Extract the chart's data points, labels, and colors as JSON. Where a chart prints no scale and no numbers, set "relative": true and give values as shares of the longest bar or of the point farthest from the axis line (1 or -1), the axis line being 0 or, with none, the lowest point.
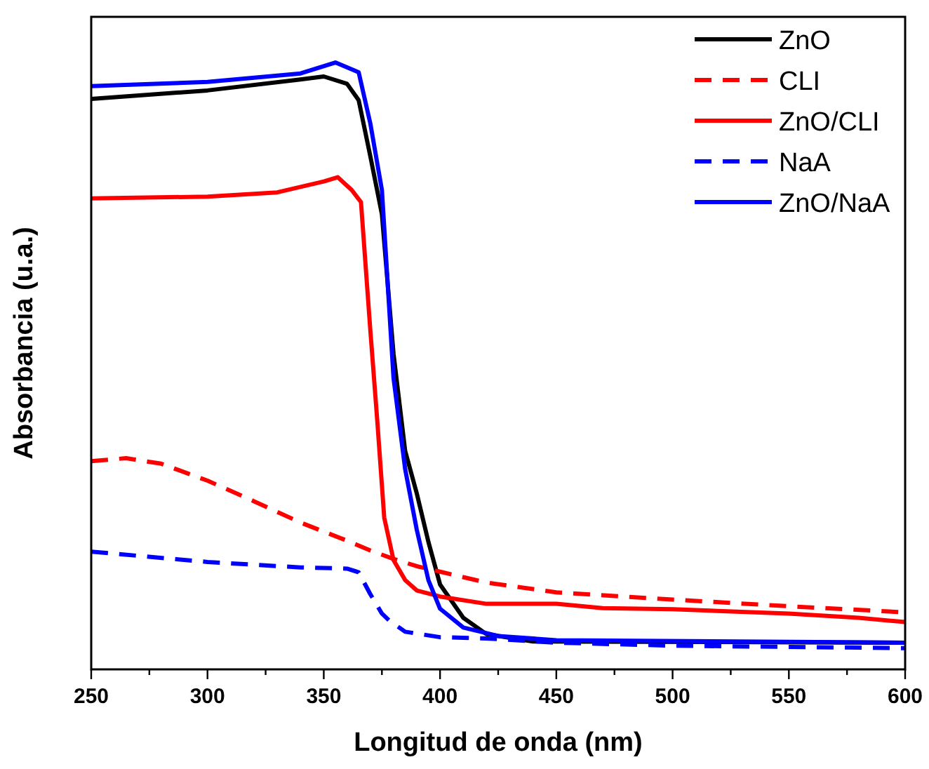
{
  "chart_data": {
    "type": "line",
    "xlabel": "Longitud de onda (nm)",
    "ylabel": "Absorbancia (u.a.)",
    "relative": true,
    "xlim": [
      250,
      600
    ],
    "xticks": [
      250,
      {
        "value": 275,
        "label": null
      },
      300,
      {
        "value": 325,
        "label": null
      },
      350,
      {
        "value": 375,
        "label": null
      },
      400,
      {
        "value": 425,
        "label": null
      },
      450,
      {
        "value": 475,
        "label": null
      },
      500,
      {
        "value": 525,
        "label": null
      },
      550,
      {
        "value": 575,
        "label": null
      },
      600
    ],
    "grid": false,
    "legend": "top right",
    "marker": "none",
    "series": [
      {
        "name": "ZnO",
        "color": "#000000",
        "line_style": "solid",
        "x": [
          250,
          300,
          340,
          350,
          360,
          365,
          370,
          375,
          380,
          385,
          390,
          395,
          400,
          410,
          420,
          440,
          600
        ],
        "values": [
          0.94,
          0.954,
          0.972,
          0.977,
          0.965,
          0.938,
          0.846,
          0.75,
          0.52,
          0.36,
          0.29,
          0.21,
          0.14,
          0.085,
          0.058,
          0.046,
          0.044
        ]
      },
      {
        "name": "CLI",
        "color": "#ff0000",
        "line_style": "dashed",
        "x": [
          250,
          265,
          280,
          300,
          320,
          340,
          360,
          370,
          380,
          390,
          400,
          420,
          450,
          500,
          550,
          600
        ],
        "values": [
          0.343,
          0.348,
          0.339,
          0.311,
          0.277,
          0.242,
          0.212,
          0.196,
          0.182,
          0.17,
          0.161,
          0.143,
          0.127,
          0.115,
          0.104,
          0.094
        ]
      },
      {
        "name": "ZnO/CLI",
        "color": "#ff0000",
        "line_style": "solid",
        "x": [
          250,
          300,
          330,
          350,
          356,
          362,
          366,
          370,
          373,
          376,
          380,
          385,
          390,
          400,
          420,
          450,
          470,
          500,
          550,
          580,
          600
        ],
        "values": [
          0.776,
          0.779,
          0.786,
          0.804,
          0.811,
          0.79,
          0.77,
          0.56,
          0.41,
          0.25,
          0.18,
          0.147,
          0.13,
          0.12,
          0.108,
          0.108,
          0.101,
          0.099,
          0.092,
          0.085,
          0.078
        ]
      },
      {
        "name": "NaA",
        "color": "#0000ff",
        "line_style": "dashed",
        "x": [
          250,
          300,
          340,
          360,
          365,
          370,
          375,
          378,
          385,
          400,
          420,
          450,
          500,
          600
        ],
        "values": [
          0.194,
          0.177,
          0.168,
          0.166,
          0.16,
          0.124,
          0.092,
          0.081,
          0.062,
          0.053,
          0.051,
          0.044,
          0.039,
          0.035
        ]
      },
      {
        "name": "ZnO/NaA",
        "color": "#0000ff",
        "line_style": "solid",
        "x": [
          250,
          300,
          340,
          355,
          365,
          370,
          375,
          380,
          385,
          390,
          395,
          400,
          410,
          425,
          450,
          600
        ],
        "values": [
          0.961,
          0.968,
          0.982,
          1.0,
          0.984,
          0.9,
          0.79,
          0.48,
          0.33,
          0.23,
          0.147,
          0.1,
          0.069,
          0.055,
          0.048,
          0.044
        ]
      }
    ]
  }
}
